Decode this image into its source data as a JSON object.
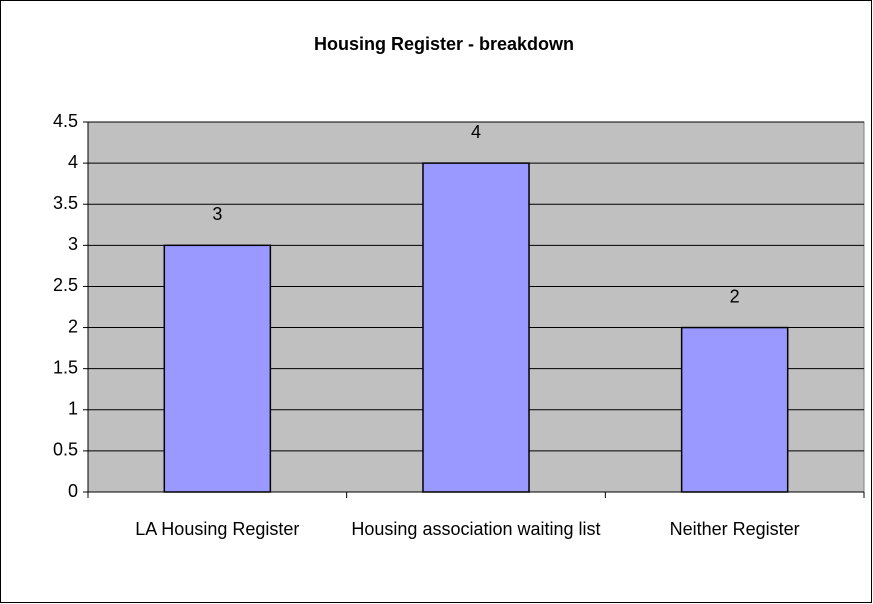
{
  "chart_data": {
    "type": "bar",
    "title": "Housing Register - breakdown",
    "categories": [
      "LA Housing Register",
      "Housing association waiting list",
      "Neither Register"
    ],
    "values": [
      3,
      4,
      2
    ],
    "color": "#9999ff",
    "ylim": [
      0,
      4.5
    ],
    "yticks": [
      0,
      0.5,
      1,
      1.5,
      2,
      2.5,
      3,
      3.5,
      4,
      4.5
    ],
    "grid": true
  }
}
